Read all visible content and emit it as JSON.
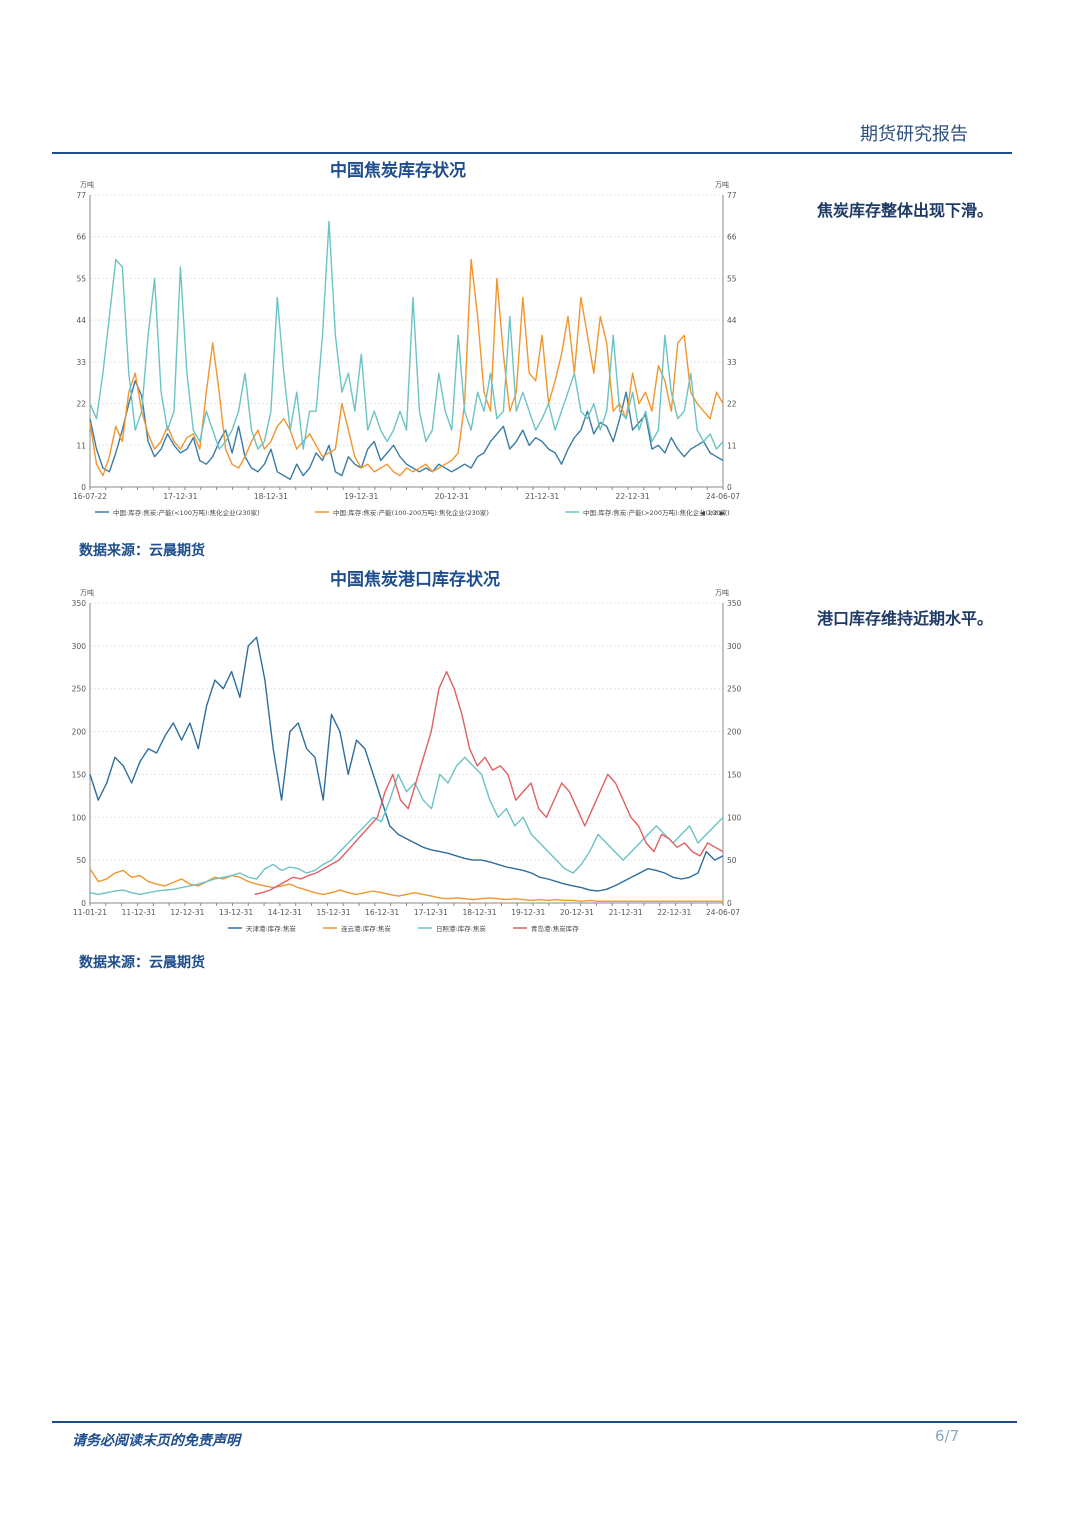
{
  "header": {
    "title": "期货研究报告"
  },
  "footer": {
    "disclaimer": "请务必阅读末页的免责声明",
    "page": "6/7"
  },
  "notes": {
    "chart1": "焦炭库存整体出现下滑。",
    "chart2": "港口库存维持近期水平。"
  },
  "sources": {
    "chart1": "数据来源：云晨期货",
    "chart2": "数据来源：云晨期货"
  },
  "colors": {
    "accent": "#1f4e8c"
  },
  "chart_data": [
    {
      "type": "line",
      "title": "中国焦炭库存状况",
      "unit_left": "万吨",
      "unit_right": "万吨",
      "ylim": [
        0,
        77
      ],
      "yticks": [
        0,
        11,
        22,
        33,
        44,
        55,
        66,
        77
      ],
      "x_tick_labels": [
        "16-07-22",
        "17-12-31",
        "18-12-31",
        "19-12-31",
        "20-12-31",
        "21-12-31",
        "22-12-31",
        "24-06-07"
      ],
      "legend_position": "bottom",
      "legend_pager": "1/2",
      "grid": true,
      "series": [
        {
          "name": "中国:库存:焦炭:产能(<100万吨):焦化企业(230家)",
          "color": "#3a7ca5",
          "values": [
            18,
            10,
            5,
            4,
            9,
            15,
            22,
            28,
            24,
            12,
            8,
            10,
            14,
            11,
            9,
            10,
            13,
            7,
            6,
            8,
            12,
            15,
            9,
            16,
            8,
            5,
            4,
            6,
            10,
            4,
            3,
            2,
            6,
            3,
            5,
            9,
            7,
            11,
            4,
            3,
            8,
            6,
            5,
            10,
            12,
            7,
            9,
            11,
            8,
            6,
            5,
            4,
            5,
            4,
            6,
            5,
            4,
            5,
            6,
            5,
            8,
            9,
            12,
            14,
            16,
            10,
            12,
            15,
            11,
            13,
            12,
            10,
            9,
            6,
            10,
            13,
            15,
            20,
            14,
            17,
            16,
            12,
            18,
            25,
            15,
            17,
            19,
            10,
            11,
            9,
            13,
            10,
            8,
            10,
            11,
            12,
            9,
            8,
            7
          ]
        },
        {
          "name": "中国:库存:焦炭:产能(100-200万吨):焦化企业(230家)",
          "color": "#f0962e",
          "values": [
            17,
            6,
            3,
            8,
            16,
            12,
            25,
            30,
            20,
            14,
            10,
            12,
            16,
            12,
            10,
            13,
            14,
            10,
            25,
            38,
            25,
            10,
            6,
            5,
            8,
            12,
            15,
            10,
            12,
            16,
            18,
            15,
            10,
            12,
            14,
            11,
            8,
            9,
            10,
            22,
            15,
            8,
            5,
            6,
            4,
            5,
            6,
            4,
            3,
            5,
            4,
            5,
            6,
            4,
            5,
            6,
            7,
            9,
            22,
            60,
            45,
            25,
            20,
            55,
            35,
            20,
            25,
            50,
            30,
            28,
            40,
            22,
            28,
            35,
            45,
            30,
            50,
            40,
            30,
            45,
            38,
            20,
            22,
            18,
            30,
            22,
            25,
            20,
            32,
            28,
            20,
            38,
            40,
            25,
            22,
            20,
            18,
            25,
            22
          ]
        },
        {
          "name": "中国:库存:焦炭:产能(>200万吨):焦化企业(230家)",
          "color": "#6cc3c4",
          "values": [
            22,
            18,
            30,
            45,
            60,
            58,
            30,
            15,
            20,
            40,
            55,
            25,
            15,
            20,
            58,
            30,
            15,
            12,
            20,
            15,
            10,
            12,
            15,
            20,
            30,
            15,
            10,
            12,
            20,
            50,
            30,
            15,
            25,
            10,
            20,
            20,
            40,
            70,
            40,
            25,
            30,
            20,
            35,
            15,
            20,
            15,
            12,
            15,
            20,
            15,
            50,
            20,
            12,
            15,
            30,
            20,
            15,
            40,
            20,
            15,
            25,
            20,
            30,
            18,
            20,
            45,
            20,
            25,
            20,
            15,
            18,
            22,
            15,
            20,
            25,
            30,
            20,
            18,
            22,
            15,
            20,
            40,
            20,
            18,
            25,
            15,
            20,
            12,
            15,
            40,
            25,
            18,
            20,
            30,
            15,
            12,
            14,
            10,
            12
          ]
        }
      ]
    },
    {
      "type": "line",
      "title": "中国焦炭港口库存状况",
      "unit_left": "万吨",
      "unit_right": "万吨",
      "ylim": [
        0,
        350
      ],
      "yticks": [
        0,
        50,
        100,
        150,
        200,
        250,
        300,
        350
      ],
      "x_tick_labels": [
        "11-01-21",
        "11-12-31",
        "12-12-31",
        "13-12-31",
        "14-12-31",
        "15-12-31",
        "16-12-31",
        "17-12-31",
        "18-12-31",
        "19-12-31",
        "20-12-31",
        "21-12-31",
        "22-12-31",
        "24-06-07"
      ],
      "legend_position": "bottom",
      "grid": true,
      "series": [
        {
          "name": "天津港:库存:焦炭",
          "color": "#2e6e9e",
          "values": [
            150,
            120,
            140,
            170,
            160,
            140,
            165,
            180,
            175,
            195,
            210,
            190,
            210,
            180,
            230,
            260,
            250,
            270,
            240,
            300,
            310,
            260,
            180,
            120,
            200,
            210,
            180,
            170,
            120,
            220,
            200,
            150,
            190,
            180,
            150,
            120,
            90,
            80,
            75,
            70,
            65,
            62,
            60,
            58,
            55,
            52,
            50,
            50,
            48,
            45,
            42,
            40,
            38,
            35,
            30,
            28,
            25,
            22,
            20,
            18,
            15,
            14,
            16,
            20,
            25,
            30,
            35,
            40,
            38,
            35,
            30,
            28,
            30,
            35,
            60,
            50,
            55
          ]
        },
        {
          "name": "连云港:库存:焦炭",
          "color": "#f0962e",
          "values": [
            40,
            25,
            28,
            35,
            38,
            30,
            32,
            25,
            22,
            20,
            24,
            28,
            22,
            20,
            25,
            30,
            28,
            32,
            30,
            25,
            22,
            20,
            18,
            20,
            22,
            18,
            15,
            12,
            10,
            12,
            15,
            12,
            10,
            12,
            14,
            12,
            10,
            8,
            10,
            12,
            10,
            8,
            6,
            5,
            6,
            5,
            4,
            5,
            6,
            5,
            4,
            5,
            4,
            3,
            4,
            3,
            4,
            3,
            3,
            2,
            3,
            2,
            2,
            2,
            2,
            2,
            2,
            2,
            2,
            2,
            2,
            2,
            2,
            2,
            2,
            2,
            2
          ]
        },
        {
          "name": "日照港:库存:焦炭",
          "color": "#6cc3c4",
          "values": [
            12,
            10,
            12,
            14,
            15,
            12,
            10,
            12,
            14,
            15,
            16,
            18,
            20,
            22,
            25,
            28,
            30,
            32,
            35,
            30,
            28,
            40,
            45,
            38,
            42,
            40,
            35,
            38,
            45,
            50,
            60,
            70,
            80,
            90,
            100,
            95,
            120,
            150,
            130,
            140,
            120,
            110,
            150,
            140,
            160,
            170,
            160,
            150,
            120,
            100,
            110,
            90,
            100,
            80,
            70,
            60,
            50,
            40,
            35,
            45,
            60,
            80,
            70,
            60,
            50,
            60,
            70,
            80,
            90,
            80,
            70,
            80,
            90,
            70,
            80,
            90,
            100
          ]
        },
        {
          "name": "青岛港:焦炭库存",
          "color": "#e06060",
          "values": [
            10,
            12,
            15,
            20,
            25,
            30,
            28,
            32,
            35,
            40,
            45,
            50,
            60,
            70,
            80,
            90,
            100,
            130,
            150,
            120,
            110,
            140,
            170,
            200,
            250,
            270,
            250,
            220,
            180,
            160,
            170,
            155,
            160,
            150,
            120,
            130,
            140,
            110,
            100,
            120,
            140,
            130,
            110,
            90,
            110,
            130,
            150,
            140,
            120,
            100,
            90,
            70,
            60,
            80,
            75,
            65,
            70,
            60,
            55,
            70,
            65,
            60
          ]
        }
      ]
    }
  ]
}
